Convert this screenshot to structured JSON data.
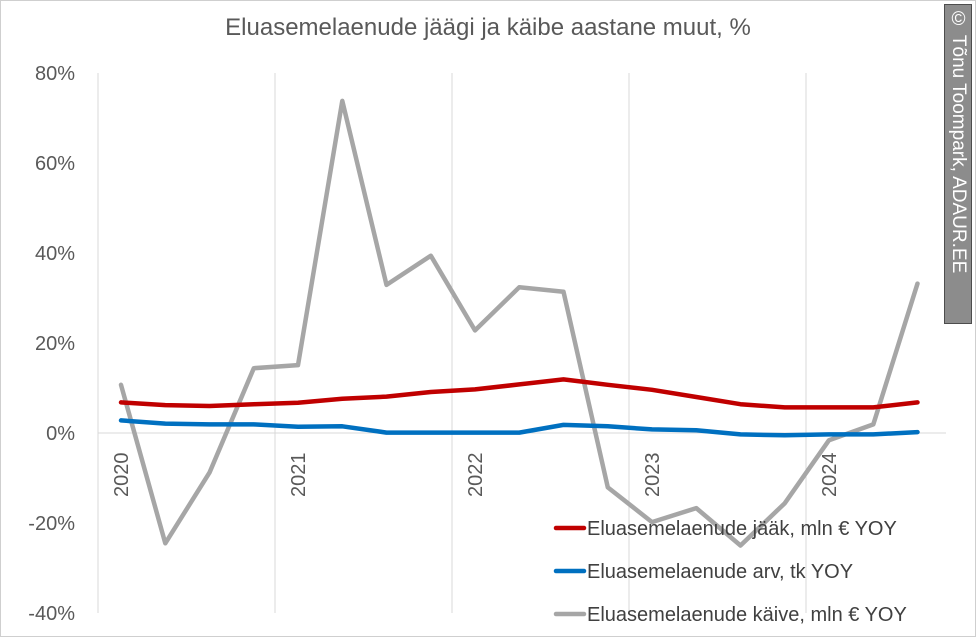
{
  "chart_data": {
    "type": "line",
    "title": "Eluasemelaenude jäägi ja käibe aastane muut, %",
    "credit": "© Tõnu Toompark, ADAUR.EE",
    "yticks": [
      "-40%",
      "-20%",
      "0%",
      "20%",
      "40%",
      "60%",
      "80%"
    ],
    "ylim": [
      -40,
      80
    ],
    "xlim": [
      0,
      4.6
    ],
    "xticks": [
      "2020",
      "2021",
      "2022",
      "2023",
      "2024"
    ],
    "grid": "vertical",
    "legend": "bottom-right",
    "colors": {
      "Eluasemelaenude jääk, mln € YOY": "#c00000",
      "Eluasemelaenude arv, tk YOY": "#0070c0",
      "Eluasemelaenude käive, mln € YOY": "#a6a6a6"
    },
    "series": [
      {
        "name": "Eluasemelaenude jääk, mln € YOY",
        "x": [
          0,
          0.25,
          0.5,
          0.75,
          1,
          1.25,
          1.5,
          1.75,
          2,
          2.25,
          2.5,
          2.75,
          3,
          3.25,
          3.5,
          3.75,
          4,
          4.25,
          4.5
        ],
        "values": [
          6.8,
          6.2,
          6.0,
          6.4,
          6.7,
          7.6,
          8.1,
          9.1,
          9.7,
          10.8,
          11.9,
          10.7,
          9.6,
          8.0,
          6.4,
          5.7,
          5.7,
          5.7,
          6.8
        ]
      },
      {
        "name": "Eluasemelaenude arv, tk YOY",
        "x": [
          0,
          0.25,
          0.5,
          0.75,
          1,
          1.25,
          1.5,
          1.75,
          2,
          2.25,
          2.5,
          2.75,
          3,
          3.25,
          3.5,
          3.75,
          4,
          4.25,
          4.5
        ],
        "values": [
          2.8,
          2.1,
          1.9,
          1.9,
          1.4,
          1.5,
          0.1,
          0.1,
          0.1,
          0.1,
          1.8,
          1.5,
          0.8,
          0.6,
          -0.3,
          -0.5,
          -0.3,
          -0.3,
          0.2
        ]
      },
      {
        "name": "Eluasemelaenude käive, mln € YOY",
        "x": [
          0,
          0.25,
          0.5,
          0.75,
          1,
          1.25,
          1.5,
          1.75,
          2,
          2.25,
          2.5,
          2.75,
          3,
          3.25,
          3.5,
          3.75,
          4,
          4.25,
          4.5
        ],
        "values": [
          10.7,
          -24.5,
          -8.8,
          14.4,
          15.1,
          73.8,
          32.9,
          39.4,
          22.8,
          32.4,
          31.4,
          -12.1,
          -19.8,
          -16.7,
          -25.0,
          -15.6,
          -1.6,
          1.9,
          33.2
        ]
      }
    ]
  }
}
